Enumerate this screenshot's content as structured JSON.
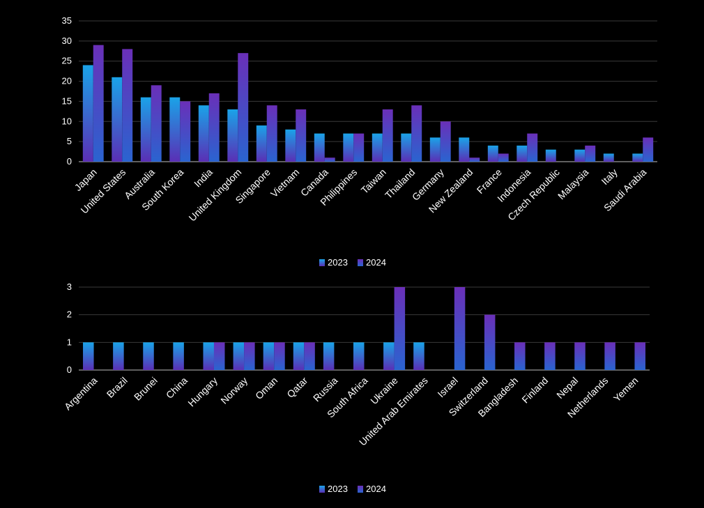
{
  "colors": {
    "background": "#000000",
    "grid": "#3a3a3a",
    "series_2023": [
      "#1aa3e8",
      "#5a2fb5"
    ],
    "series_2024": [
      "#6a2fb8",
      "#2a64d0"
    ]
  },
  "chart_data": [
    {
      "type": "bar",
      "categories": [
        "Japan",
        "United States",
        "Australia",
        "South Korea",
        "India",
        "United Kingdom",
        "Singapore",
        "Vietnam",
        "Canada",
        "Philippines",
        "Taiwan",
        "Thailand",
        "Germany",
        "New Zealand",
        "France",
        "Indonesia",
        "Czech Republic",
        "Malaysia",
        "Italy",
        "Saudi Arabia"
      ],
      "series": [
        {
          "name": "2023",
          "values": [
            24,
            21,
            16,
            16,
            14,
            13,
            9,
            8,
            7,
            7,
            7,
            7,
            6,
            6,
            4,
            4,
            3,
            3,
            2,
            2
          ]
        },
        {
          "name": "2024",
          "values": [
            29,
            28,
            19,
            15,
            17,
            27,
            14,
            13,
            1,
            7,
            13,
            14,
            10,
            1,
            2,
            7,
            0,
            4,
            0,
            6
          ]
        }
      ],
      "ylim": [
        0,
        35
      ],
      "yticks": [
        0,
        5,
        10,
        15,
        20,
        25,
        30,
        35
      ],
      "grid": true,
      "legend": "bottom-center"
    },
    {
      "type": "bar",
      "categories": [
        "Argentina",
        "Brazil",
        "Brunei",
        "China",
        "Hungary",
        "Norway",
        "Oman",
        "Qatar",
        "Russia",
        "South Africa",
        "Ukraine",
        "United Arab Emirates",
        "Israel",
        "Switzerland",
        "Bangladesh",
        "Finland",
        "Nepal",
        "Netherlands",
        "Yemen"
      ],
      "series": [
        {
          "name": "2023",
          "values": [
            1,
            1,
            1,
            1,
            1,
            1,
            1,
            1,
            1,
            1,
            1,
            1,
            0,
            0,
            0,
            0,
            0,
            0,
            0
          ]
        },
        {
          "name": "2024",
          "values": [
            0,
            0,
            0,
            0,
            1,
            1,
            1,
            1,
            0,
            0,
            3,
            0,
            3,
            2,
            1,
            1,
            1,
            1,
            1
          ]
        }
      ],
      "ylim": [
        0,
        3
      ],
      "yticks": [
        0,
        1,
        2,
        3
      ],
      "grid": true,
      "legend": "bottom-center"
    }
  ]
}
